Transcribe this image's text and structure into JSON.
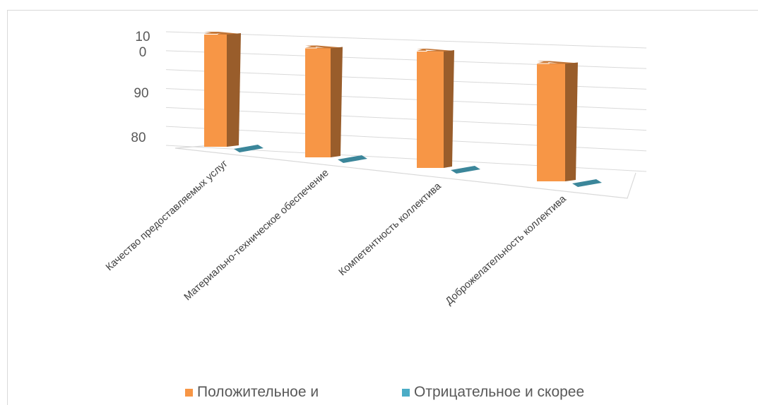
{
  "chart_data": {
    "type": "bar",
    "style": "3d-clustered-column",
    "y_tick_labels": [
      "10",
      "0",
      "90",
      "80"
    ],
    "ylim": [
      80,
      100
    ],
    "categories": [
      "Качество предоставляемых услуг",
      "Материально-техническое обеспечение",
      "Компетентность коллектива",
      "Доброжелательность коллектива"
    ],
    "series": [
      {
        "name": "Положительное и",
        "color": "#f79646",
        "values": [
          100,
          99,
          99,
          98
        ]
      },
      {
        "name": "Отрицательное и скорее",
        "color": "#4bacc6",
        "values": [
          0,
          0,
          0,
          0
        ]
      }
    ],
    "grid": true,
    "legend_position": "bottom"
  }
}
